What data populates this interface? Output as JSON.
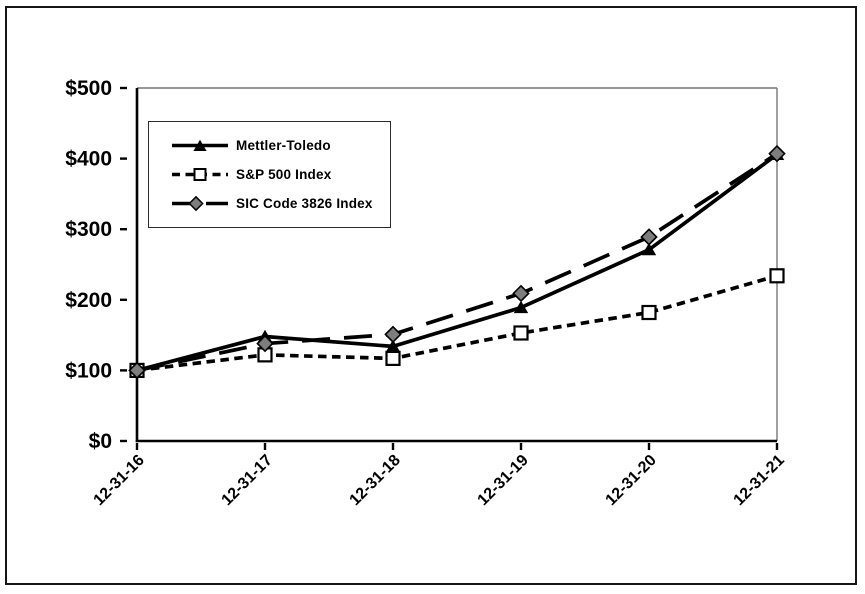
{
  "chart_data": {
    "type": "line",
    "title": "",
    "xlabel": "",
    "ylabel": "",
    "categories": [
      "12-31-16",
      "12-31-17",
      "12-31-18",
      "12-31-19",
      "12-31-20",
      "12-31-21"
    ],
    "series": [
      {
        "name": "Mettler-Toledo",
        "values": [
          100,
          148,
          134,
          189,
          271,
          406
        ],
        "line": "solid",
        "marker": "triangle",
        "color": "#000000",
        "marker_fill": "#000000"
      },
      {
        "name": "S&P 500 Index",
        "values": [
          100,
          122,
          117,
          153,
          182,
          234
        ],
        "line": "dashed",
        "marker": "square",
        "color": "#000000",
        "marker_fill": "#ffffff"
      },
      {
        "name": "SIC Code 3826 Index",
        "values": [
          100,
          138,
          151,
          209,
          289,
          407
        ],
        "line": "longdash",
        "marker": "diamond",
        "color": "#000000",
        "marker_fill": "#7d7d7d"
      }
    ],
    "ylim": [
      0,
      500
    ],
    "yticks": [
      {
        "value": 0,
        "label": "$0"
      },
      {
        "value": 100,
        "label": "$100"
      },
      {
        "value": 200,
        "label": "$200"
      },
      {
        "value": 300,
        "label": "$300"
      },
      {
        "value": 400,
        "label": "$400"
      },
      {
        "value": 500,
        "label": "$500"
      }
    ],
    "grid": false,
    "legend_position": "upper-left-inside"
  },
  "colors": {
    "line": "#000000",
    "diamond_fill": "#7d7d7d",
    "square_fill": "#ffffff",
    "axis": "#000000",
    "plot_border": "#777777",
    "frame": "#161616"
  }
}
